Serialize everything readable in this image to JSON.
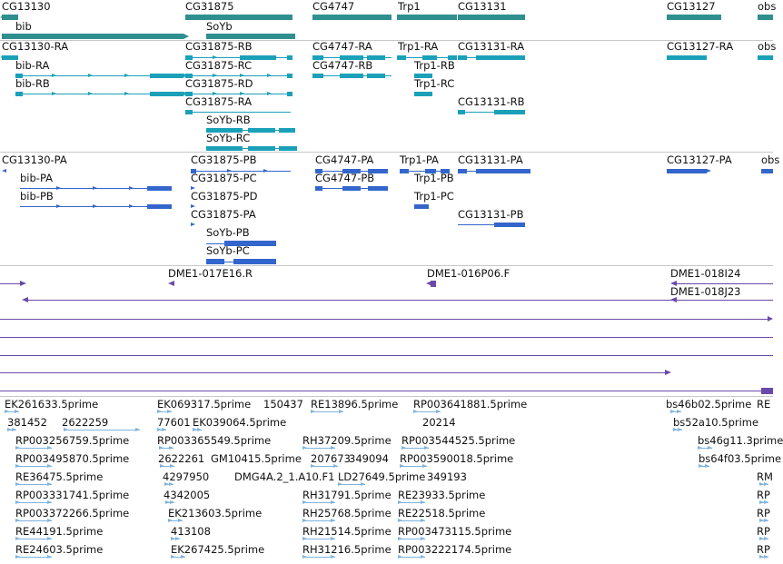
{
  "colors": {
    "gene": "#2f8f8f",
    "transcript": "#1aa0b8",
    "protein": "#3366cc",
    "clone": "#6a4aa8",
    "est": "#7fb3dd"
  },
  "genes": [
    "CG13130",
    "bib",
    "CG31875",
    "SoYb",
    "CG4747",
    "Trp1",
    "CG13131",
    "CG13127",
    "obs"
  ],
  "transcripts": [
    "CG13130-RA",
    "bib-RA",
    "bib-RB",
    "CG31875-RB",
    "CG31875-RC",
    "CG31875-RD",
    "CG31875-RA",
    "SoYb-RB",
    "SoYb-RC",
    "CG4747-RA",
    "CG4747-RB",
    "Trp1-RA",
    "Trp1-RB",
    "Trp1-RC",
    "CG13131-RA",
    "CG13131-RB",
    "CG13127-RA",
    "obs"
  ],
  "proteins": [
    "CG13130-PA",
    "bib-PA",
    "bib-PB",
    "CG31875-PB",
    "CG31875-PC",
    "CG31875-PD",
    "CG31875-PA",
    "SoYb-PB",
    "SoYb-PC",
    "CG4747-PA",
    "CG4747-PB",
    "Trp1-PA",
    "Trp1-PB",
    "Trp1-PC",
    "CG13131-PA",
    "CG13131-PB",
    "CG13127-PA",
    "obs"
  ],
  "clones": [
    "DME1-017E16.R",
    "DME1-016P06.F",
    "DME1-018I24",
    "DME1-018J23"
  ],
  "ests": [
    "EK261633.5prime",
    "EK069317.5prime",
    "150437",
    "RE13896.5prime",
    "RP003641881.5prime",
    "bs46b02.5prime",
    "RE",
    "381452",
    "2622259",
    "77601",
    "EK039064.5prime",
    "20214",
    "bs52a10.5prime",
    "RP003256759.5prime",
    "RP003365549.5prime",
    "RH37209.5prime",
    "RP003544525.5prime",
    "bs46g11.3prime",
    "RP003495870.5prime",
    "2622261",
    "GM10415.5prime",
    "207673",
    "349094",
    "RP003590018.5prime",
    "bs64f03.5prime",
    "RE36475.5prime",
    "4297950",
    "DMG4A.2_1.A10.F1",
    "LD27649.5prime",
    "349193",
    "RM",
    "RP003331741.5prime",
    "4342005",
    "RH31791.5prime",
    "RE23933.5prime",
    "RP",
    "RP003372266.5prime",
    "EK213603.5prime",
    "RH25768.5prime",
    "RE22518.5prime",
    "RP",
    "RE44191.5prime",
    "413108",
    "RH21514.5prime",
    "RP003473115.5prime",
    "RP",
    "RE24603.5prime",
    "EK267425.5prime",
    "RH31216.5prime",
    "RP003222174.5prime",
    "RP"
  ]
}
